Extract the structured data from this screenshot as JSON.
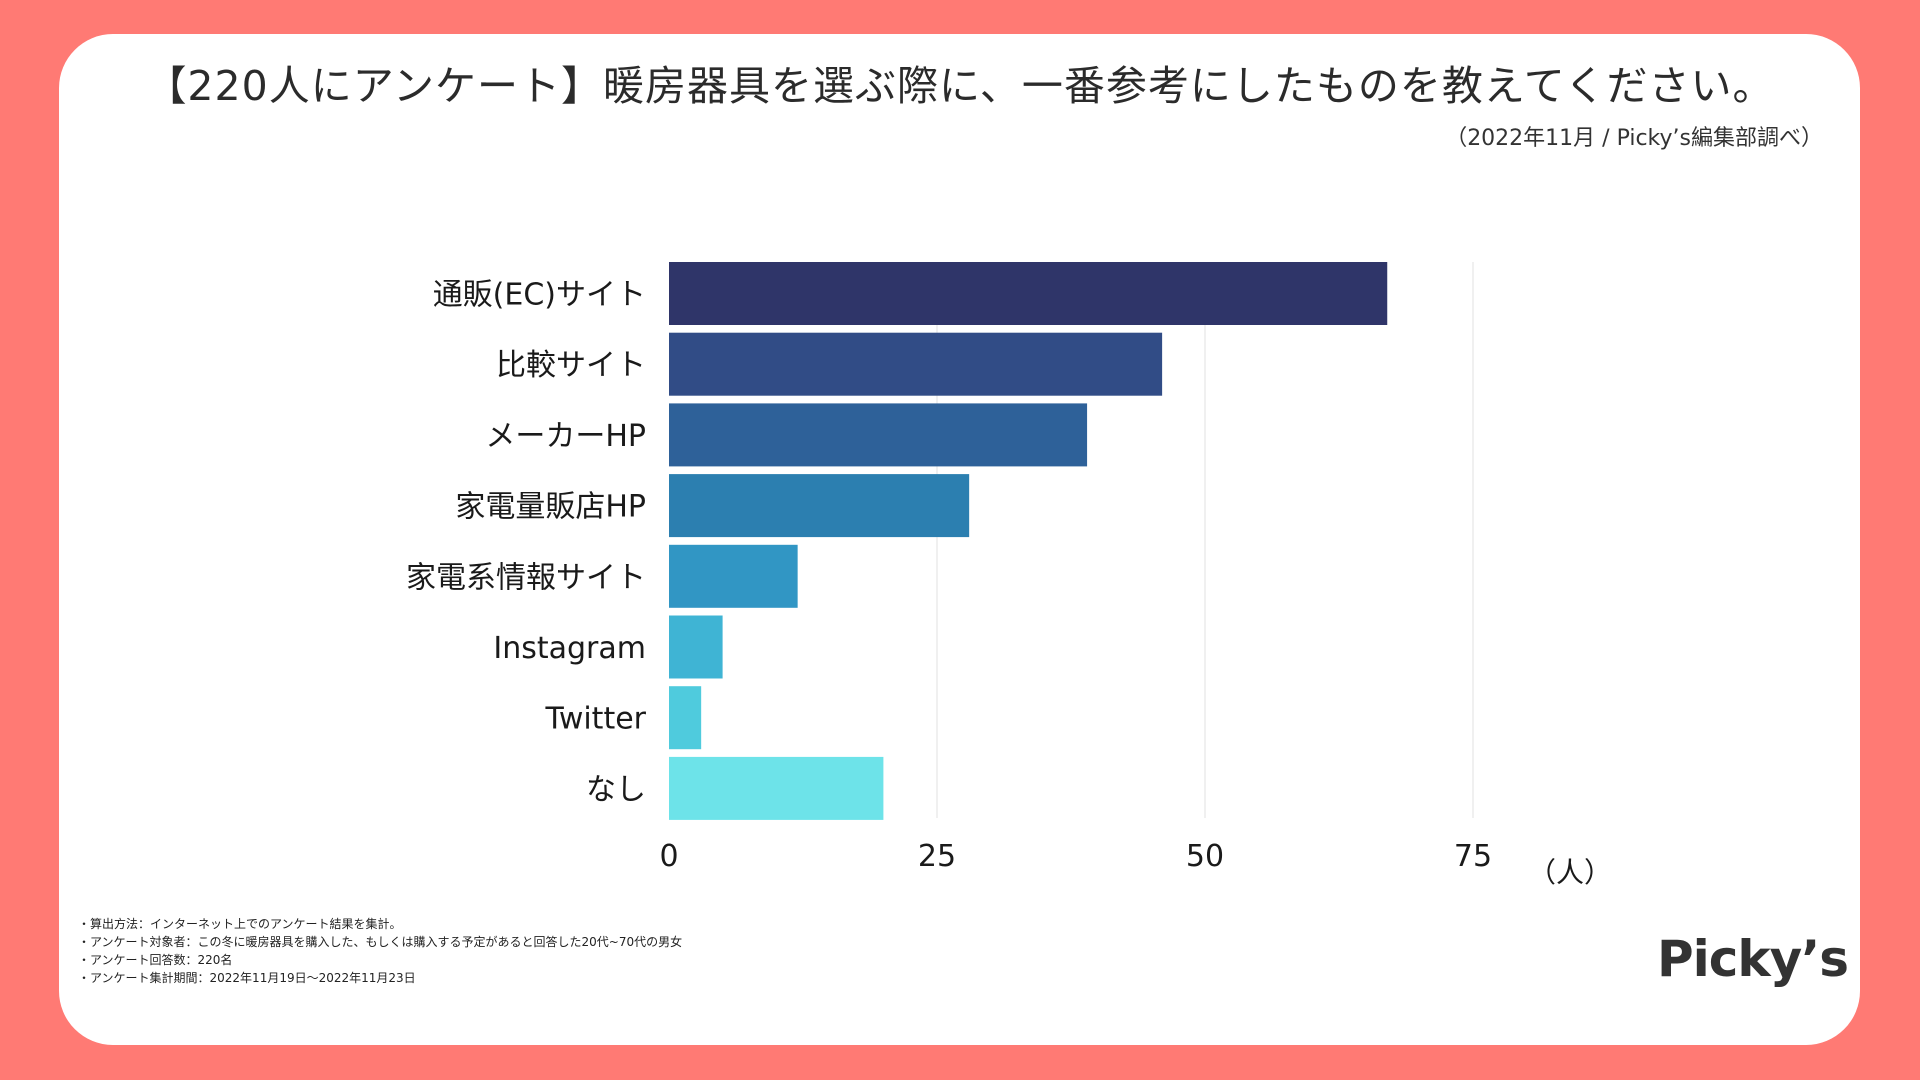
{
  "title": "【220人にアンケート】暖房器具を選ぶ際に、一番参考にしたものを教えてください。",
  "source": "（2022年11月 / Picky’s編集部調べ）",
  "colors": {
    "background": "#FF7A74",
    "card": "#FFFFFF",
    "bars": [
      "#2F3569",
      "#314C86",
      "#2E6199",
      "#2C7FB0",
      "#3196C4",
      "#3FB4D4",
      "#4FCBDD",
      "#6DE3E9"
    ]
  },
  "chart_data": {
    "type": "bar",
    "orientation": "horizontal",
    "categories": [
      "通販(EC)サイト",
      "比較サイト",
      "メーカーHP",
      "家電量販店HP",
      "家電系情報サイト",
      "Instagram",
      "Twitter",
      "なし"
    ],
    "values": [
      67,
      46,
      39,
      28,
      12,
      5,
      3,
      20
    ],
    "xticks": [
      "0",
      "25",
      "50",
      "75"
    ],
    "xtick_values": [
      0,
      25,
      50,
      75
    ],
    "xlim": [
      0,
      75
    ],
    "unit": "（人）",
    "grid": true,
    "legend": "none"
  },
  "notes": [
    "・算出方法：インターネット上でのアンケート結果を集計。",
    "・アンケート対象者：この冬に暖房器具を購入した、もしくは購入する予定があると回答した20代~70代の男女",
    "・アンケート回答数：220名",
    "・アンケート集計期間：2022年11月19日～2022年11月23日"
  ],
  "logo": "Picky’s"
}
